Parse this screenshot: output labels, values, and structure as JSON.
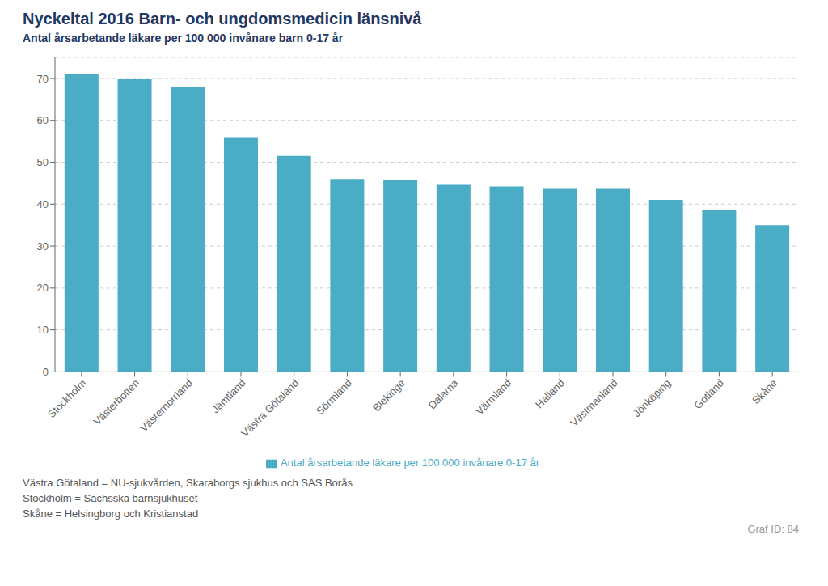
{
  "chart_data": {
    "type": "bar",
    "title": "Nyckeltal 2016 Barn- och ungdomsmedicin länsnivå",
    "subtitle": "Antal årsarbetande läkare per 100 000 invånare barn 0-17 år",
    "categories": [
      "Stockholm",
      "Västerbotten",
      "Västernorrland",
      "Jämtland",
      "Västra Götaland",
      "Sörmland",
      "Blekinge",
      "Dalarna",
      "Värmland",
      "Halland",
      "Västmanland",
      "Jönköping",
      "Gotland",
      "Skåne"
    ],
    "series": [
      {
        "name": "Antal årsarbetande läkare per 100 000 invånare 0-17 år",
        "color": "#4BACC6",
        "values": [
          71.0,
          70.0,
          68.0,
          56.0,
          51.5,
          46.0,
          45.8,
          44.8,
          44.2,
          43.8,
          43.8,
          41.0,
          38.7,
          35.0
        ]
      }
    ],
    "ylim": [
      0,
      75
    ],
    "yticks": [
      0,
      10,
      20,
      30,
      40,
      50,
      60,
      70
    ],
    "grid": true,
    "legend": "bottom",
    "annotations": [
      "Västra Götaland = NU-sjukvården, Skaraborgs sjukhus och SÄS Borås",
      "Stockholm = Sachsska barnsjukhuset",
      "Skåne = Helsingborg och Kristianstad",
      "Graf ID: 84"
    ]
  }
}
